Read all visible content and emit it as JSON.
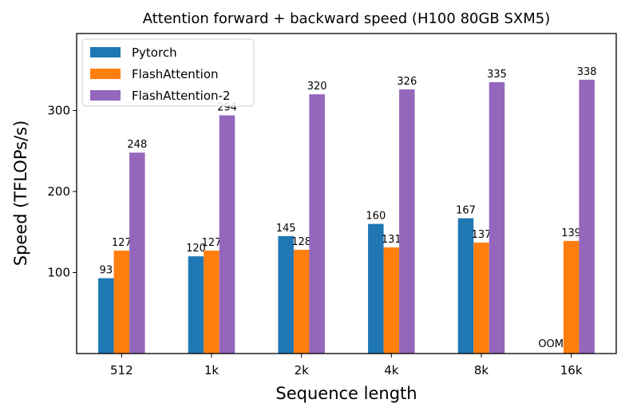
{
  "chart_data": {
    "type": "bar",
    "title": "Attention forward + backward speed (H100 80GB SXM5)",
    "xlabel": "Sequence length",
    "ylabel": "Speed (TFLOPs/s)",
    "categories": [
      "512",
      "1k",
      "2k",
      "4k",
      "8k",
      "16k"
    ],
    "ylim": [
      0,
      395
    ],
    "yticks": [
      100,
      200,
      300
    ],
    "legend_position": "top-left",
    "series": [
      {
        "name": "Pytorch",
        "color": "#1f77b4",
        "values": [
          93,
          120,
          145,
          160,
          167,
          null
        ],
        "labels": [
          "93",
          "120",
          "145",
          "160",
          "167",
          "OOM"
        ]
      },
      {
        "name": "FlashAttention",
        "color": "#ff7f0e",
        "values": [
          127,
          127,
          128,
          131,
          137,
          139
        ],
        "labels": [
          "127",
          "127",
          "128",
          "131",
          "137",
          "139"
        ]
      },
      {
        "name": "FlashAttention-2",
        "color": "#9467bd",
        "values": [
          248,
          294,
          320,
          326,
          335,
          338
        ],
        "labels": [
          "248",
          "294",
          "320",
          "326",
          "335",
          "338"
        ]
      }
    ]
  }
}
